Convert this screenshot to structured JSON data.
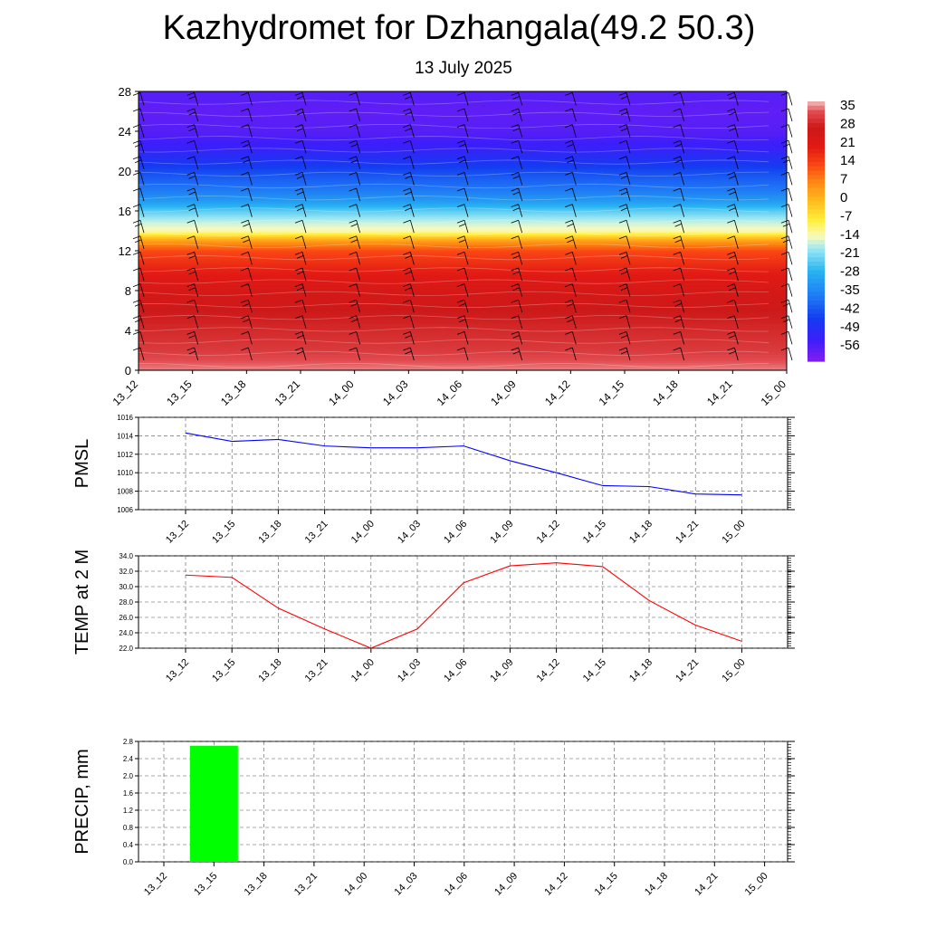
{
  "header": {
    "title": "Kazhydromet for Dzhangala(49.2 50.3)",
    "subtitle": "13 July 2025"
  },
  "colors": {
    "pmsl_line": "#0000ff",
    "temp_line": "#ff0000",
    "precip_bar": "#00ff00",
    "grid": "#000000"
  },
  "chart_data": [
    {
      "type": "heatmap",
      "title": "",
      "xlabel": "",
      "ylabel": "",
      "x_ticks": [
        "13_12",
        "13_15",
        "13_18",
        "13_21",
        "14_00",
        "14_03",
        "14_06",
        "14_09",
        "14_12",
        "14_15",
        "14_18",
        "14_21",
        "15_00"
      ],
      "y_ticks": [
        "0",
        "4",
        "8",
        "12",
        "16",
        "20",
        "24",
        "28"
      ],
      "ylim": [
        0,
        28
      ],
      "colorbar_labels": [
        "35",
        "28",
        "21",
        "14",
        "7",
        "0",
        "-7",
        "-14",
        "-21",
        "-28",
        "-35",
        "-42",
        "-49",
        "-56"
      ],
      "colorbar_range": [
        -60,
        38
      ],
      "temperature_profile": {
        "levels": [
          0,
          2,
          4,
          6,
          8,
          10,
          12,
          13,
          14,
          15,
          16,
          17,
          18,
          20,
          22,
          24,
          26,
          28
        ],
        "values": [
          36,
          32,
          30,
          28,
          25,
          20,
          14,
          5,
          -12,
          -16,
          -22,
          -30,
          -35,
          -42,
          -50,
          -55,
          -56,
          -55
        ]
      },
      "wind_barbs": true
    },
    {
      "type": "line",
      "title": "",
      "ylabel": "PMSL",
      "x": [
        "13_12",
        "13_15",
        "13_18",
        "13_21",
        "14_00",
        "14_03",
        "14_06",
        "14_09",
        "14_12",
        "14_15",
        "14_18",
        "14_21",
        "15_00"
      ],
      "series": [
        {
          "values": [
            1014.3,
            1013.4,
            1013.6,
            1012.9,
            1012.7,
            1012.7,
            1012.9,
            1011.3,
            1010.0,
            1008.6,
            1008.5,
            1007.7,
            1007.6
          ]
        }
      ],
      "y_ticks": [
        "1006",
        "1008",
        "1010",
        "1012",
        "1014",
        "1016"
      ],
      "ylim": [
        1006,
        1016
      ]
    },
    {
      "type": "line",
      "title": "",
      "ylabel": "TEMP at 2 M",
      "x": [
        "13_12",
        "13_15",
        "13_18",
        "13_21",
        "14_00",
        "14_03",
        "14_06",
        "14_09",
        "14_12",
        "14_15",
        "14_18",
        "14_21",
        "15_00"
      ],
      "series": [
        {
          "values": [
            31.5,
            31.2,
            27.2,
            24.5,
            22.0,
            24.5,
            30.5,
            32.7,
            33.1,
            32.6,
            28.2,
            25.0,
            22.9
          ]
        }
      ],
      "y_ticks": [
        "22.0",
        "24.0",
        "26.0",
        "28.0",
        "30.0",
        "32.0",
        "34.0"
      ],
      "ylim": [
        22,
        34
      ]
    },
    {
      "type": "bar",
      "title": "",
      "ylabel": "PRECIP, mm",
      "categories": [
        "13_12",
        "13_15",
        "13_18",
        "13_21",
        "14_00",
        "14_03",
        "14_06",
        "14_09",
        "14_12",
        "14_15",
        "14_18",
        "14_21",
        "15_00"
      ],
      "values": [
        0,
        2.7,
        0,
        0,
        0,
        0,
        0,
        0,
        0,
        0,
        0,
        0,
        0
      ],
      "y_ticks": [
        "0.0",
        "0.4",
        "0.8",
        "1.2",
        "1.6",
        "2.0",
        "2.4",
        "2.8"
      ],
      "ylim": [
        0,
        2.8
      ]
    }
  ]
}
